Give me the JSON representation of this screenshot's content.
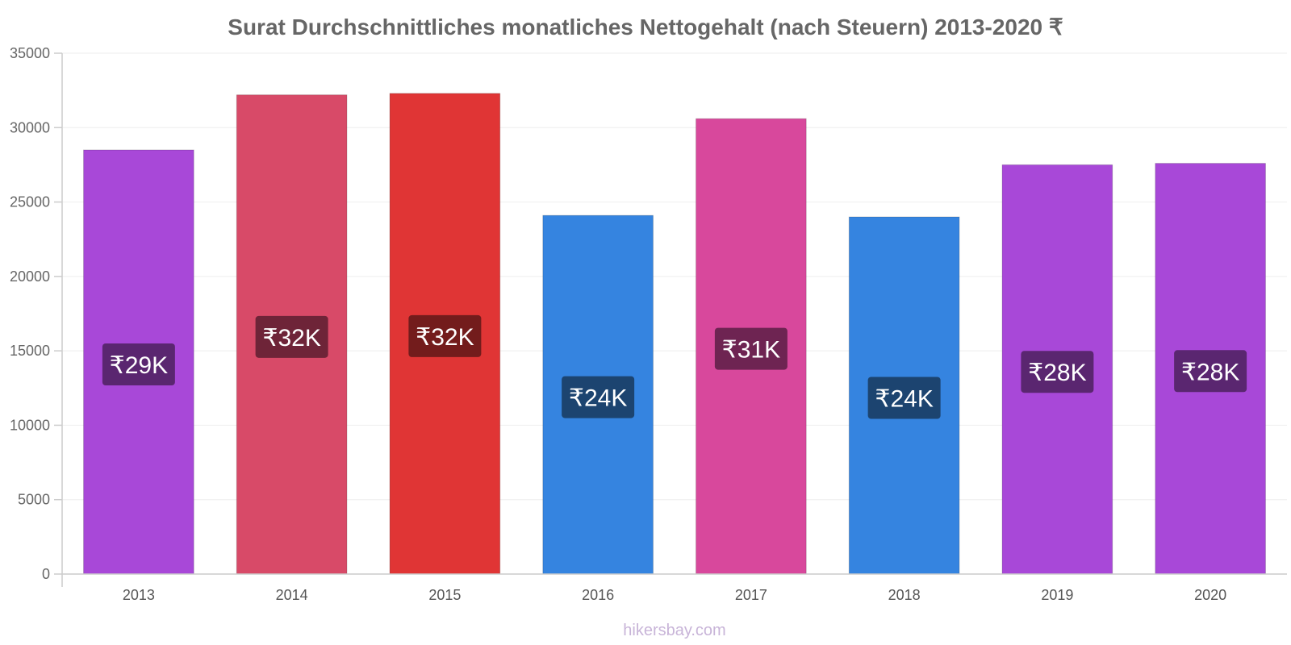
{
  "chart_data": {
    "type": "bar",
    "title": "Surat Durchschnittliches monatliches Nettogehalt (nach Steuern) 2013-2020 ₹",
    "xlabel": "",
    "ylabel": "",
    "categories": [
      "2013",
      "2014",
      "2015",
      "2016",
      "2017",
      "2018",
      "2019",
      "2020"
    ],
    "values": [
      28500,
      32200,
      32300,
      24100,
      30600,
      24000,
      27500,
      27600
    ],
    "data_labels": [
      "₹29K",
      "₹32K",
      "₹32K",
      "₹24K",
      "₹31K",
      "₹24K",
      "₹28K",
      "₹28K"
    ],
    "bar_colors": [
      "#a848d8",
      "#d84a68",
      "#e03535",
      "#3584e0",
      "#d8489c",
      "#3584e0",
      "#a848d8",
      "#a848d8"
    ],
    "label_bg_colors": [
      "#5a2670",
      "#6e2438",
      "#731c1c",
      "#1c4470",
      "#6e2452",
      "#1c4470",
      "#5a2670",
      "#5a2670"
    ],
    "ylim": [
      0,
      35000
    ],
    "yticks": [
      0,
      5000,
      10000,
      15000,
      20000,
      25000,
      30000,
      35000
    ],
    "grid": true,
    "legend": "none"
  },
  "footer": "hikersbay.com"
}
